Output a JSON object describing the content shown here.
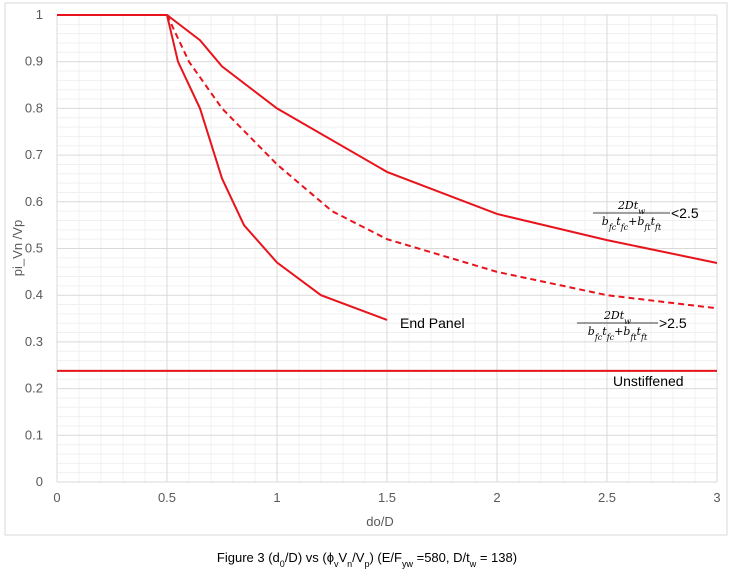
{
  "chart_data": {
    "type": "line",
    "x_label": "do/D",
    "y_label": "pi_Vn /Vp",
    "xlim": [
      0,
      3
    ],
    "ylim": [
      0,
      1
    ],
    "xticks": [
      0,
      0.5,
      1,
      1.5,
      2,
      2.5,
      3
    ],
    "yticks": [
      0,
      0.1,
      0.2,
      0.3,
      0.4,
      0.5,
      0.6,
      0.7,
      0.8,
      0.9,
      1
    ],
    "grid": true,
    "minor_grid": true,
    "series": [
      {
        "color": "#e8141c",
        "dash": false,
        "x": [
          0,
          0.5,
          0.65,
          0.75,
          1,
          1.5,
          2,
          2.5,
          3
        ],
        "values": [
          1,
          1,
          0.946,
          0.89,
          0.8,
          0.664,
          0.574,
          0.518,
          0.469
        ]
      },
      {
        "color": "#e8141c",
        "dash": true,
        "x": [
          0.5,
          0.6,
          0.75,
          1,
          1.25,
          1.5,
          2,
          2.5,
          3
        ],
        "values": [
          1,
          0.9,
          0.8,
          0.68,
          0.58,
          0.52,
          0.45,
          0.4,
          0.372
        ]
      },
      {
        "color": "#e8141c",
        "dash": false,
        "x": [
          0.5,
          0.55,
          0.65,
          0.75,
          0.85,
          1,
          1.2,
          1.5
        ],
        "values": [
          1,
          0.9,
          0.8,
          0.65,
          0.55,
          0.47,
          0.4,
          0.347
        ]
      },
      {
        "color": "#e8141c",
        "dash": false,
        "x": [
          0,
          3
        ],
        "values": [
          0.238,
          0.238
        ]
      }
    ],
    "annotations": [
      "End Panel",
      "Unstiffened"
    ],
    "formulas": [
      {
        "numerator": [
          {
            "text": "2Dt"
          },
          {
            "text": "w",
            "sub": true
          }
        ],
        "denominator": [
          {
            "text": "b"
          },
          {
            "text": "fc",
            "sub": true
          },
          {
            "text": "t"
          },
          {
            "text": "fc",
            "sub": true
          },
          {
            "text": "+b"
          },
          {
            "text": "ft",
            "sub": true
          },
          {
            "text": "t"
          },
          {
            "text": "ft",
            "sub": true
          }
        ],
        "suffix": "<2.5"
      },
      {
        "numerator": [
          {
            "text": "2Dt"
          },
          {
            "text": "w",
            "sub": true
          }
        ],
        "denominator": [
          {
            "text": "b"
          },
          {
            "text": "fc",
            "sub": true
          },
          {
            "text": "t"
          },
          {
            "text": "fc",
            "sub": true
          },
          {
            "text": "+b"
          },
          {
            "text": "ft",
            "sub": true
          },
          {
            "text": "t"
          },
          {
            "text": "ft",
            "sub": true
          }
        ],
        "suffix": ">2.5"
      }
    ],
    "caption": [
      {
        "text": "Figure 3 (d"
      },
      {
        "text": "0",
        "sub": true
      },
      {
        "text": "/D) vs (ϕ"
      },
      {
        "text": "v",
        "sub": true
      },
      {
        "text": "V"
      },
      {
        "text": "n",
        "sub": true
      },
      {
        "text": "/V"
      },
      {
        "text": "p",
        "sub": true
      },
      {
        "text": ") (E/F"
      },
      {
        "text": "yw",
        "sub": true
      },
      {
        "text": " =580, D/t"
      },
      {
        "text": "w",
        "sub": true
      },
      {
        "text": " = 138)"
      }
    ]
  }
}
